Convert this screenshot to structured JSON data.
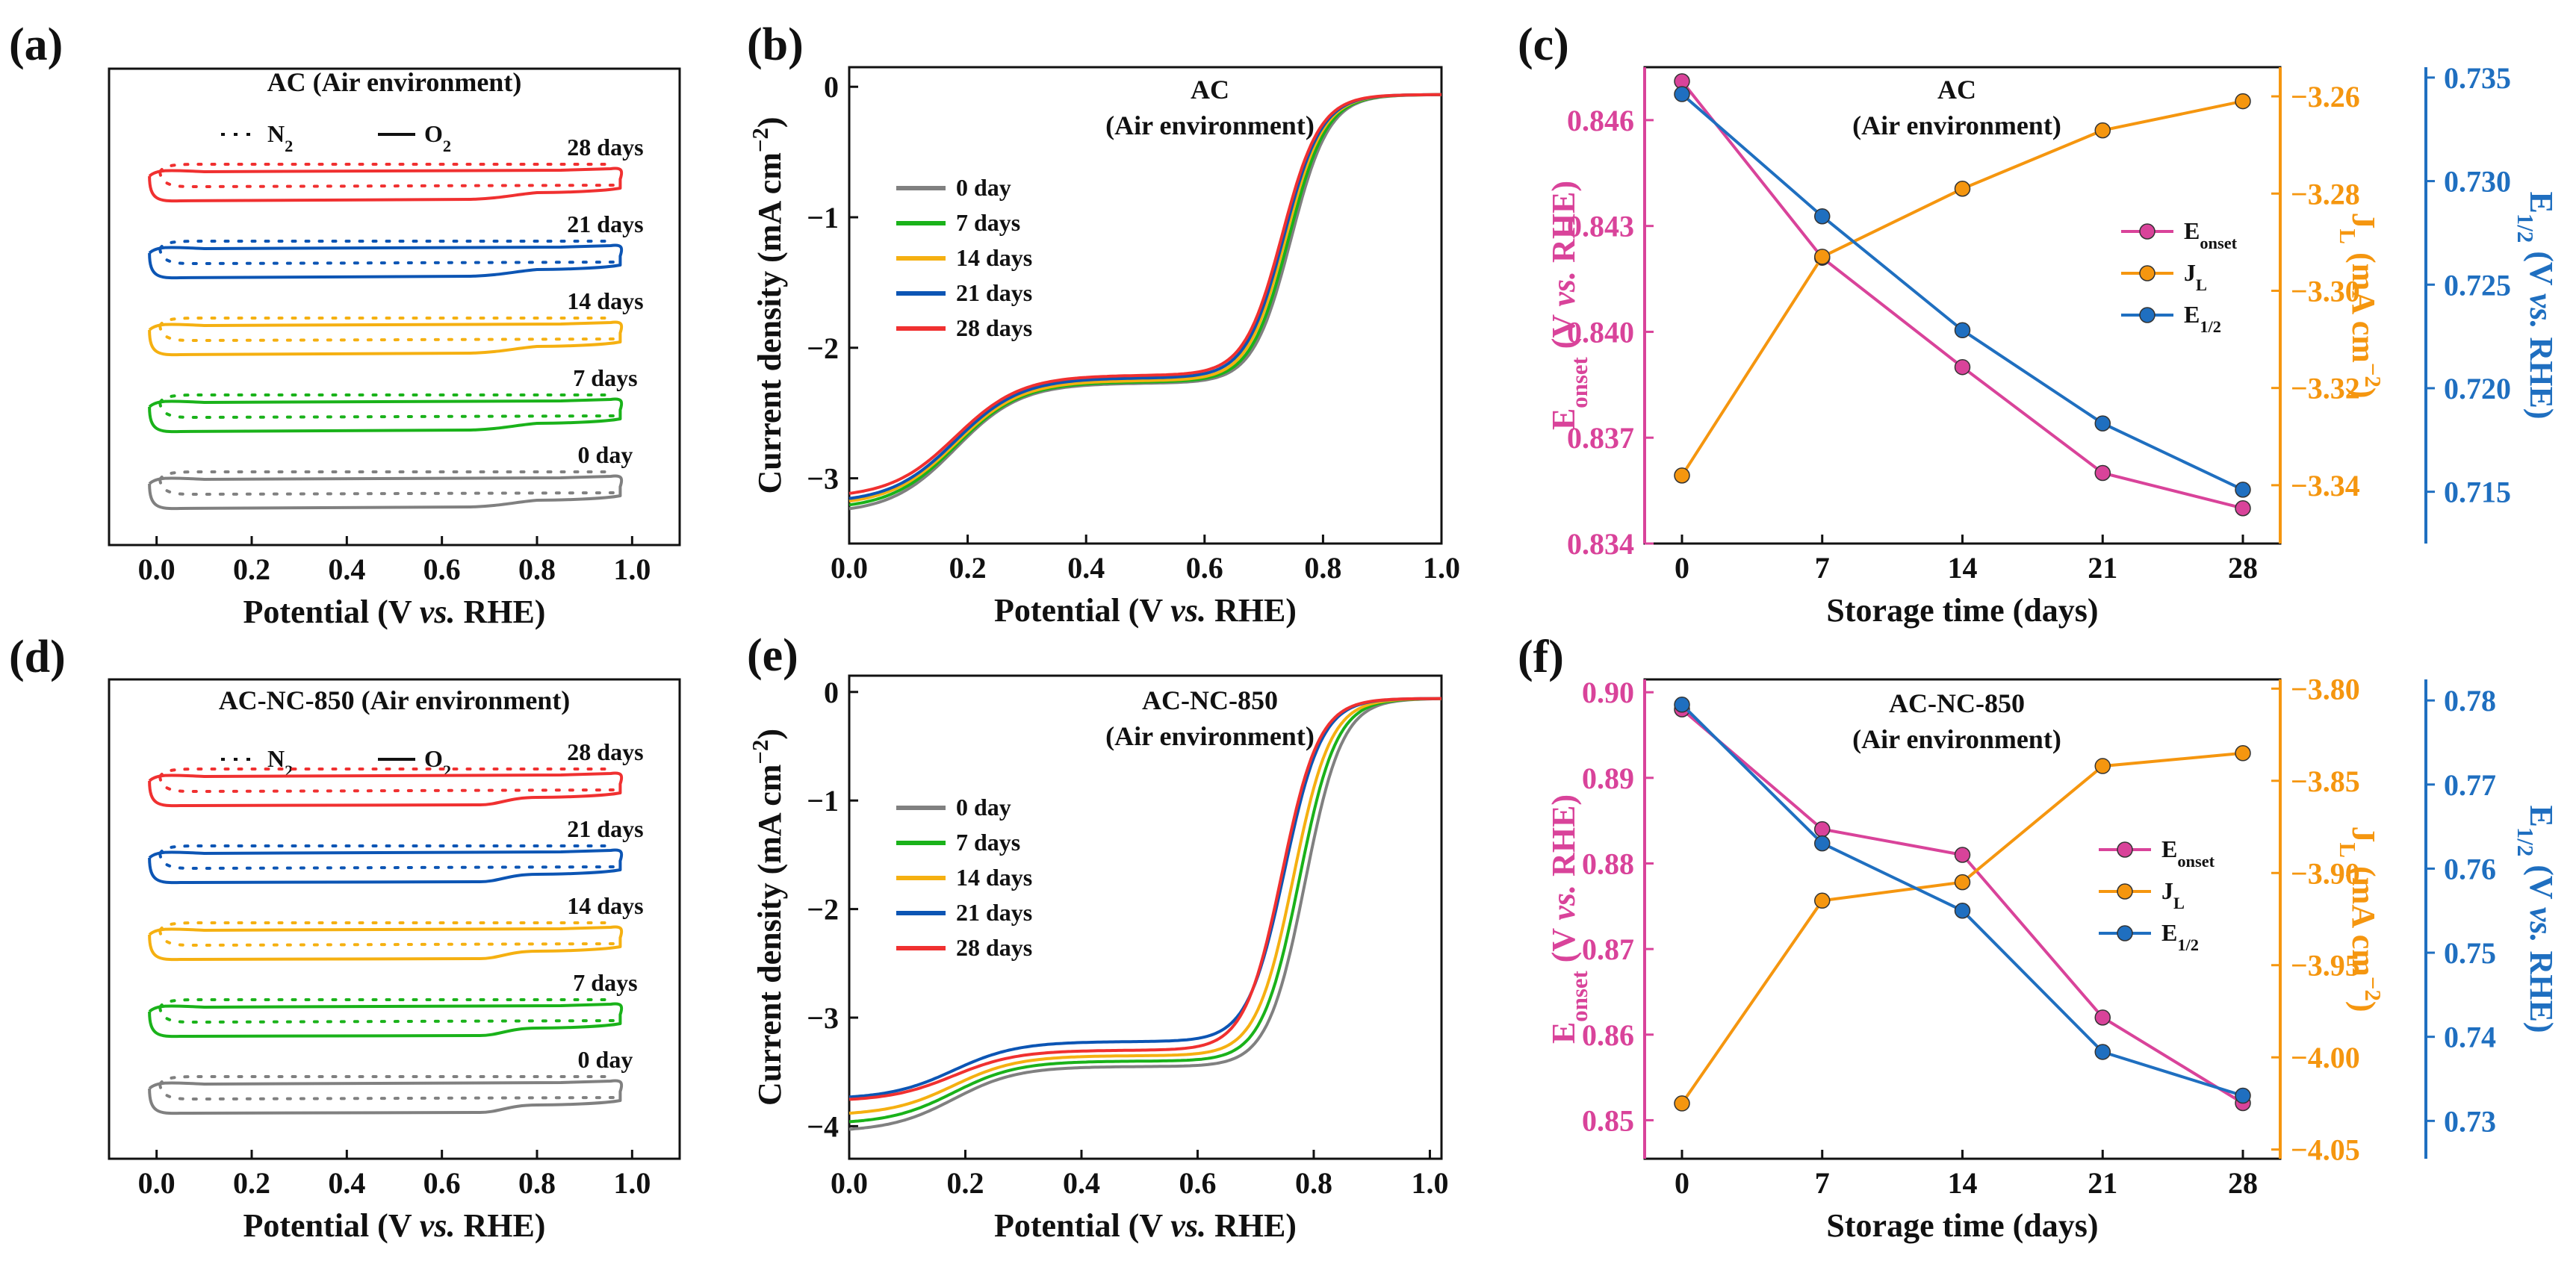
{
  "panel_labels": [
    "(a)",
    "(b)",
    "(c)",
    "(d)",
    "(e)",
    "(f)"
  ],
  "colors": {
    "d0": "#808080",
    "d7": "#1ab21a",
    "d14": "#f5b011",
    "d21": "#0c55b4",
    "d28": "#f03030",
    "eonset": "#d9439a",
    "jl": "#f5960f",
    "ehalf": "#1f6fc0",
    "axis": "#111111"
  },
  "chart_data": [
    {
      "panel": "(a)",
      "type": "line",
      "title": "AC  (Air environment)",
      "legend": [
        "N2",
        "O2"
      ],
      "xlabel": "Potential  (V vs. RHE)",
      "xlim": [
        -0.1,
        1.1
      ],
      "xticks": [
        "0.0",
        "0.2",
        "0.4",
        "0.6",
        "0.8",
        "1.0"
      ],
      "series": [
        {
          "name": "0 day",
          "label_text": "0 day",
          "color_key": "d0",
          "offset": 0
        },
        {
          "name": "7 days",
          "label_text": "7 days",
          "color_key": "d7",
          "offset": 1
        },
        {
          "name": "14 days",
          "label_text": "14 days",
          "color_key": "d14",
          "offset": 2
        },
        {
          "name": "21 days",
          "label_text": "21 days",
          "color_key": "d21",
          "offset": 3
        },
        {
          "name": "28 days",
          "label_text": "28 days",
          "color_key": "d28",
          "offset": 4
        }
      ]
    },
    {
      "panel": "(b)",
      "type": "line",
      "title_lines": [
        "AC",
        "(Air environment)"
      ],
      "xlabel": "Potential  (V vs. RHE)",
      "ylabel": "Current density (mA cm-2)",
      "xlim": [
        0.0,
        1.0
      ],
      "ylim": [
        -3.5,
        0.15
      ],
      "xticks": [
        "0.0",
        "0.2",
        "0.4",
        "0.6",
        "0.8",
        "1.0"
      ],
      "yticks": [
        "-3",
        "-2",
        "-1",
        "0"
      ],
      "legend": [
        "0  day",
        "7  days",
        "14  days",
        "21  days",
        "28  days"
      ],
      "series": [
        {
          "name": "0 day",
          "color_key": "d0",
          "jl": -3.27,
          "e_half": 0.746,
          "plateau": -2.27
        },
        {
          "name": "7 days",
          "color_key": "d7",
          "jl": -3.24,
          "e_half": 0.742,
          "plateau": -2.26
        },
        {
          "name": "14 days",
          "color_key": "d14",
          "jl": -3.21,
          "e_half": 0.737,
          "plateau": -2.25
        },
        {
          "name": "21 days",
          "color_key": "d21",
          "jl": -3.19,
          "e_half": 0.734,
          "plateau": -2.23
        },
        {
          "name": "28 days",
          "color_key": "d28",
          "jl": -3.15,
          "e_half": 0.731,
          "plateau": -2.21
        }
      ]
    },
    {
      "panel": "(c)",
      "type": "line",
      "title_lines": [
        "AC",
        "(Air environment)"
      ],
      "xlabel": "Storage time (days)",
      "x": [
        0,
        7,
        14,
        21,
        28
      ],
      "xticks": [
        "0",
        "7",
        "14",
        "21",
        "28"
      ],
      "axes": [
        {
          "name": "Eonset",
          "label": "Eonset (V vs. RHE)",
          "ylim": [
            0.834,
            0.8475
          ],
          "ticks": [
            0.834,
            0.837,
            0.84,
            0.843,
            0.846
          ],
          "tick_labels": [
            "0.834",
            "0.837",
            "0.840",
            "0.843",
            "0.846"
          ]
        },
        {
          "name": "JL",
          "label": "JL (mA cm-2)",
          "ylim": [
            -3.352,
            -3.254
          ],
          "ticks": [
            -3.34,
            -3.32,
            -3.3,
            -3.28,
            -3.26
          ],
          "tick_labels": [
            "-3.34",
            "-3.32",
            "-3.30",
            "-3.28",
            "-3.26"
          ]
        },
        {
          "name": "E1/2",
          "label": "E1/2 (V vs. RHE)",
          "ylim": [
            0.7125,
            0.7355
          ],
          "ticks": [
            0.715,
            0.72,
            0.725,
            0.73,
            0.735
          ],
          "tick_labels": [
            "0.715",
            "0.720",
            "0.725",
            "0.730",
            "0.735"
          ]
        }
      ],
      "series": [
        {
          "name": "Eonset",
          "axis": 0,
          "color_key": "eonset",
          "values": [
            0.8471,
            0.8421,
            0.839,
            0.836,
            0.835
          ]
        },
        {
          "name": "JL",
          "axis": 1,
          "color_key": "jl",
          "values": [
            -3.338,
            -3.293,
            -3.279,
            -3.267,
            -3.261
          ]
        },
        {
          "name": "E1/2",
          "axis": 2,
          "color_key": "ehalf",
          "values": [
            0.7342,
            0.7283,
            0.7228,
            0.7183,
            0.7151
          ]
        }
      ],
      "legend": [
        "Eonset",
        "JL",
        "E1/2"
      ]
    },
    {
      "panel": "(d)",
      "type": "line",
      "title": "AC-NC-850  (Air environment)",
      "legend": [
        "N2",
        "O2"
      ],
      "xlabel": "Potential  (V vs. RHE)",
      "xlim": [
        -0.1,
        1.1
      ],
      "xticks": [
        "0.0",
        "0.2",
        "0.4",
        "0.6",
        "0.8",
        "1.0"
      ],
      "series": [
        {
          "name": "0 day",
          "label_text": "0 day",
          "color_key": "d0",
          "offset": 0
        },
        {
          "name": "7 days",
          "label_text": "7 days",
          "color_key": "d7",
          "offset": 1
        },
        {
          "name": "14 days",
          "label_text": "14 days",
          "color_key": "d14",
          "offset": 2
        },
        {
          "name": "21 days",
          "label_text": "21 days",
          "color_key": "d21",
          "offset": 3
        },
        {
          "name": "28 days",
          "label_text": "28 days",
          "color_key": "d28",
          "offset": 4
        }
      ]
    },
    {
      "panel": "(e)",
      "type": "line",
      "title_lines": [
        "AC-NC-850",
        "(Air environment)"
      ],
      "xlabel": "Potential  (V vs. RHE)",
      "ylabel": "Current density (mA cm-2)",
      "xlim": [
        0.0,
        1.02
      ],
      "ylim": [
        -4.3,
        0.15
      ],
      "xticks": [
        "0.0",
        "0.2",
        "0.4",
        "0.6",
        "0.8",
        "1.0"
      ],
      "yticks": [
        "-4",
        "-3",
        "-2",
        "-1",
        "0"
      ],
      "legend": [
        "0  day",
        "7  days",
        "14  days",
        "21  days",
        "28  days"
      ],
      "series": [
        {
          "name": "0 day",
          "color_key": "d0",
          "jl": -4.05,
          "e_half": 0.785,
          "plateau": -3.45
        },
        {
          "name": "7 days",
          "color_key": "d7",
          "jl": -3.98,
          "e_half": 0.775,
          "plateau": -3.4
        },
        {
          "name": "14 days",
          "color_key": "d14",
          "jl": -3.9,
          "e_half": 0.765,
          "plateau": -3.35
        },
        {
          "name": "21 days",
          "color_key": "d21",
          "jl": -3.75,
          "e_half": 0.75,
          "plateau": -3.22
        },
        {
          "name": "28 days",
          "color_key": "d28",
          "jl": -3.77,
          "e_half": 0.745,
          "plateau": -3.3
        }
      ]
    },
    {
      "panel": "(f)",
      "type": "line",
      "title_lines": [
        "AC-NC-850",
        "(Air environment)"
      ],
      "xlabel": "Storage time (days)",
      "x": [
        0,
        7,
        14,
        21,
        28
      ],
      "xticks": [
        "0",
        "7",
        "14",
        "21",
        "28"
      ],
      "axes": [
        {
          "name": "Eonset",
          "label": "Eonset (V vs. RHE)",
          "ylim": [
            0.8455,
            0.9015
          ],
          "ticks": [
            0.85,
            0.86,
            0.87,
            0.88,
            0.89,
            0.9
          ],
          "tick_labels": [
            "0.85",
            "0.86",
            "0.87",
            "0.88",
            "0.89",
            "0.90"
          ]
        },
        {
          "name": "JL",
          "label": "JL (mA cm-2)",
          "ylim": [
            -4.055,
            -3.795
          ],
          "ticks": [
            -4.05,
            -4.0,
            -3.95,
            -3.9,
            -3.85,
            -3.8
          ],
          "tick_labels": [
            "-4.05",
            "-4.00",
            "-3.95",
            "-3.90",
            "-3.85",
            "-3.80"
          ]
        },
        {
          "name": "E1/2",
          "label": "E1/2 (V vs. RHE)",
          "ylim": [
            0.7255,
            0.7825
          ],
          "ticks": [
            0.73,
            0.74,
            0.75,
            0.76,
            0.77,
            0.78
          ],
          "tick_labels": [
            "0.73",
            "0.74",
            "0.75",
            "0.76",
            "0.77",
            "0.78"
          ]
        }
      ],
      "series": [
        {
          "name": "Eonset",
          "axis": 0,
          "color_key": "eonset",
          "values": [
            0.898,
            0.884,
            0.881,
            0.862,
            0.852
          ]
        },
        {
          "name": "JL",
          "axis": 1,
          "color_key": "jl",
          "values": [
            -4.025,
            -3.915,
            -3.905,
            -3.842,
            -3.835
          ]
        },
        {
          "name": "E1/2",
          "axis": 2,
          "color_key": "ehalf",
          "values": [
            0.7795,
            0.763,
            0.755,
            0.7382,
            0.733
          ]
        }
      ],
      "legend": [
        "Eonset",
        "JL",
        "E1/2"
      ]
    }
  ]
}
